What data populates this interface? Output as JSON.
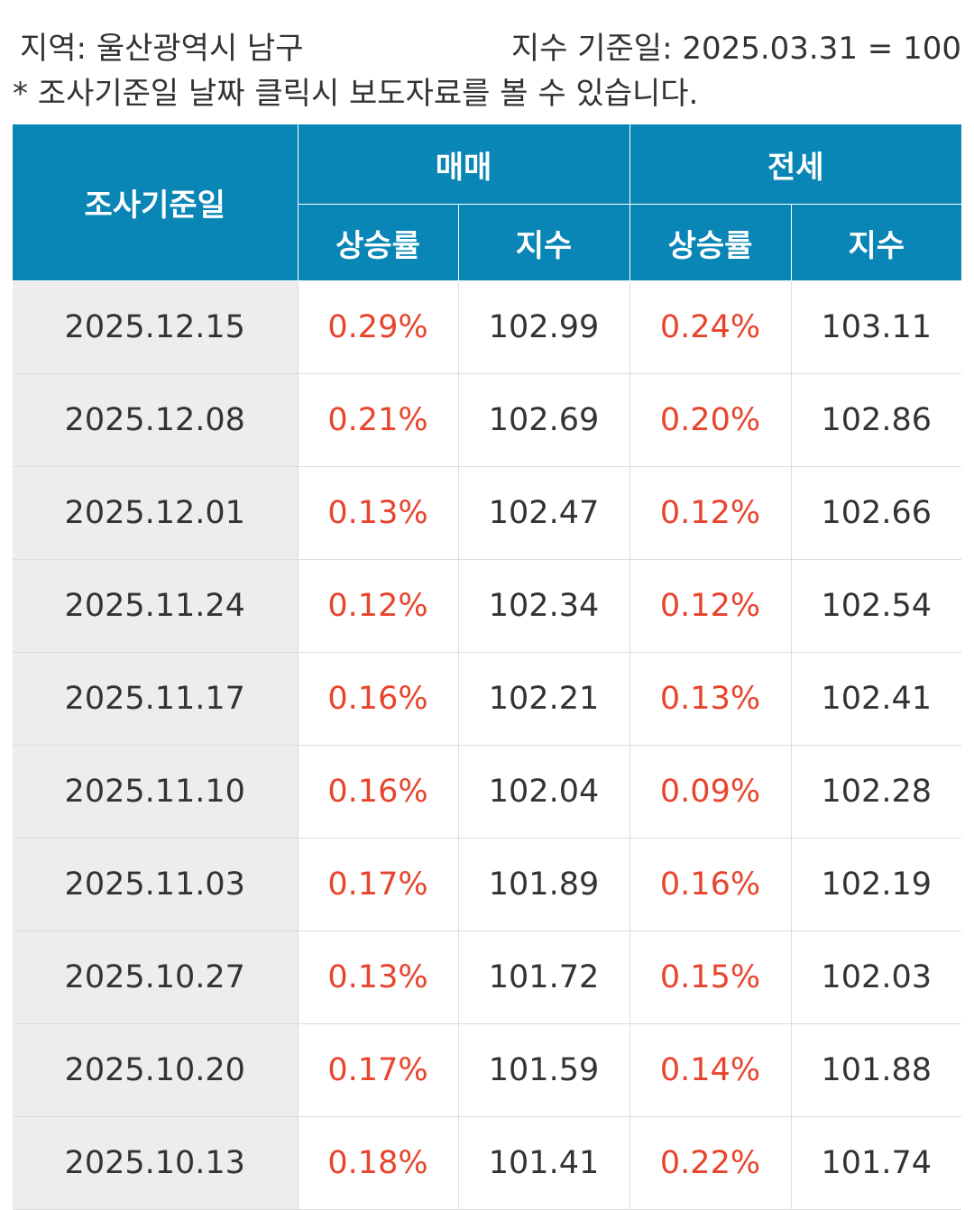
{
  "header": {
    "region": "지역: 울산광역시 남구",
    "base_date": "지수 기준일: 2025.03.31 = 100",
    "note": "* 조사기준일 날짜 클릭시 보도자료를 볼 수 있습니다."
  },
  "table": {
    "col_date": "조사기준일",
    "group_sale": "매매",
    "group_jeonse": "전세",
    "sub_rate": "상승률",
    "sub_index": "지수",
    "rows": [
      {
        "date": "2025.12.15",
        "sale_rate": "0.29%",
        "sale_index": "102.99",
        "jeonse_rate": "0.24%",
        "jeonse_index": "103.11"
      },
      {
        "date": "2025.12.08",
        "sale_rate": "0.21%",
        "sale_index": "102.69",
        "jeonse_rate": "0.20%",
        "jeonse_index": "102.86"
      },
      {
        "date": "2025.12.01",
        "sale_rate": "0.13%",
        "sale_index": "102.47",
        "jeonse_rate": "0.12%",
        "jeonse_index": "102.66"
      },
      {
        "date": "2025.11.24",
        "sale_rate": "0.12%",
        "sale_index": "102.34",
        "jeonse_rate": "0.12%",
        "jeonse_index": "102.54"
      },
      {
        "date": "2025.11.17",
        "sale_rate": "0.16%",
        "sale_index": "102.21",
        "jeonse_rate": "0.13%",
        "jeonse_index": "102.41"
      },
      {
        "date": "2025.11.10",
        "sale_rate": "0.16%",
        "sale_index": "102.04",
        "jeonse_rate": "0.09%",
        "jeonse_index": "102.28"
      },
      {
        "date": "2025.11.03",
        "sale_rate": "0.17%",
        "sale_index": "101.89",
        "jeonse_rate": "0.16%",
        "jeonse_index": "102.19"
      },
      {
        "date": "2025.10.27",
        "sale_rate": "0.13%",
        "sale_index": "101.72",
        "jeonse_rate": "0.15%",
        "jeonse_index": "102.03"
      },
      {
        "date": "2025.10.20",
        "sale_rate": "0.17%",
        "sale_index": "101.59",
        "jeonse_rate": "0.14%",
        "jeonse_index": "101.88"
      },
      {
        "date": "2025.10.13",
        "sale_rate": "0.18%",
        "sale_index": "101.41",
        "jeonse_rate": "0.22%",
        "jeonse_index": "101.74"
      }
    ]
  },
  "colors": {
    "header_bg": "#0a86b6",
    "rate_text": "#e8442c",
    "date_cell_bg": "#ededed"
  }
}
